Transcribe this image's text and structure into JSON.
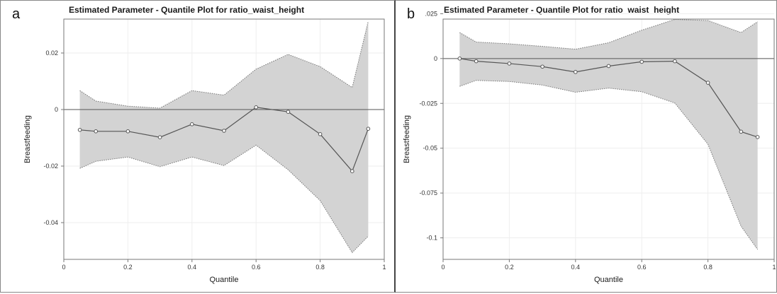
{
  "chart_data": [
    {
      "panel_label": "a",
      "type": "line",
      "title": "Estimated Parameter - Quantile Plot for  ratio_waist_height",
      "xlabel": "Quantile",
      "ylabel": "Breastfeeding",
      "xlim": [
        0,
        1
      ],
      "ylim": [
        -0.053,
        0.032
      ],
      "xticks": [
        0,
        0.2,
        0.4,
        0.6,
        0.8,
        1
      ],
      "xtick_labels": [
        "0",
        "0.2",
        "0.4",
        "0.6",
        "0.8",
        "1"
      ],
      "yticks": [
        -0.04,
        -0.02,
        0,
        0.02
      ],
      "ytick_labels": [
        "-0.04",
        "-0.02",
        "0",
        "0.02"
      ],
      "reference_line": 0,
      "grid": true,
      "x": [
        0.05,
        0.1,
        0.2,
        0.3,
        0.4,
        0.5,
        0.6,
        0.7,
        0.8,
        0.9,
        0.95
      ],
      "estimate": [
        -0.0072,
        -0.0077,
        -0.0077,
        -0.0098,
        -0.0052,
        -0.0075,
        0.0008,
        -0.0008,
        -0.0087,
        -0.0218,
        -0.0068
      ],
      "upper": [
        0.0067,
        0.003,
        0.0012,
        0.0005,
        0.0067,
        0.0051,
        0.0143,
        0.0195,
        0.0152,
        0.0078,
        0.0312
      ],
      "lower": [
        -0.0208,
        -0.0183,
        -0.0168,
        -0.0202,
        -0.0168,
        -0.0198,
        -0.0126,
        -0.0213,
        -0.0322,
        -0.0506,
        -0.0448
      ],
      "colors": {
        "band": "#d3d3d3",
        "band_edge": "#777777",
        "line": "#555555",
        "marker": "#555555",
        "grid": "#eeeeee",
        "ref": "#555555"
      }
    },
    {
      "panel_label": "b",
      "type": "line",
      "title": "Estimated Parameter - Quantile Plot for  ratio_waist_height",
      "xlabel": "Quantile",
      "ylabel": "Breastfeeding",
      "xlim": [
        0,
        1
      ],
      "ylim": [
        -0.112,
        0.022
      ],
      "xticks": [
        0,
        0.2,
        0.4,
        0.6,
        0.8,
        1
      ],
      "xtick_labels": [
        "0",
        "0.2",
        "0.4",
        "0.6",
        "0.8",
        "1"
      ],
      "yticks": [
        -0.1,
        -0.075,
        -0.05,
        -0.025,
        0,
        0.025
      ],
      "ytick_labels": [
        "-0.1",
        "-0.075",
        "-0.05",
        "-0.025",
        "0",
        ".025"
      ],
      "reference_line": 0,
      "grid": true,
      "x": [
        0.05,
        0.1,
        0.2,
        0.3,
        0.4,
        0.5,
        0.6,
        0.7,
        0.8,
        0.9,
        0.95
      ],
      "estimate": [
        0.0,
        -0.0015,
        -0.0028,
        -0.0045,
        -0.0075,
        -0.0042,
        -0.0018,
        -0.0015,
        -0.0135,
        -0.0408,
        -0.0438
      ],
      "upper": [
        0.0145,
        0.0092,
        0.0082,
        0.0068,
        0.0052,
        0.0088,
        0.0158,
        0.0218,
        0.0212,
        0.0145,
        0.0205
      ],
      "lower": [
        -0.0155,
        -0.0122,
        -0.0128,
        -0.0148,
        -0.0188,
        -0.0165,
        -0.0185,
        -0.0248,
        -0.0478,
        -0.0935,
        -0.1065
      ],
      "colors": {
        "band": "#d3d3d3",
        "band_edge": "#777777",
        "line": "#555555",
        "marker": "#555555",
        "grid": "#eeeeee",
        "ref": "#555555"
      }
    }
  ]
}
